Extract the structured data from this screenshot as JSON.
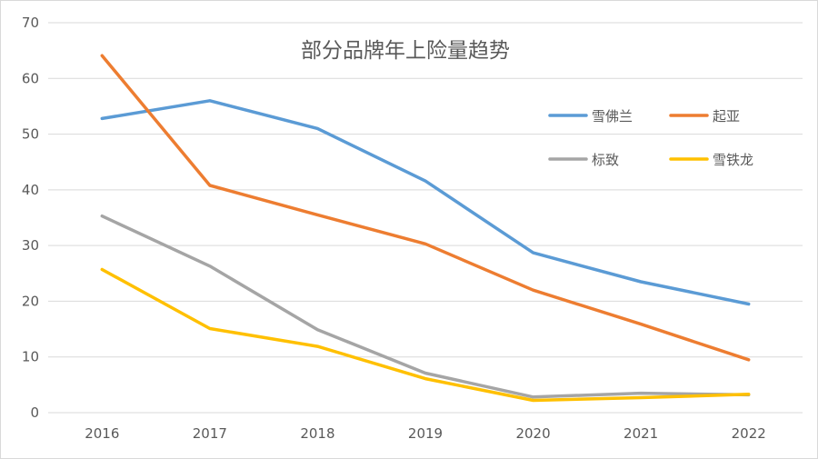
{
  "chart_data": {
    "type": "line",
    "title": "部分品牌年上险量趋势",
    "xlabel": "",
    "ylabel": "",
    "categories": [
      "2016",
      "2017",
      "2018",
      "2019",
      "2020",
      "2021",
      "2022"
    ],
    "ylim": [
      0,
      70
    ],
    "yticks": [
      "0",
      "10",
      "20",
      "30",
      "40",
      "50",
      "60",
      "70"
    ],
    "grid": true,
    "legend_position": "top-right",
    "series": [
      {
        "name": "雪佛兰",
        "color": "#5B9BD5",
        "values": [
          52.8,
          56.0,
          51.0,
          41.6,
          28.7,
          23.5,
          19.5
        ]
      },
      {
        "name": "起亚",
        "color": "#ED7D31",
        "values": [
          64.1,
          40.8,
          35.5,
          30.3,
          22.0,
          15.9,
          9.5
        ]
      },
      {
        "name": "标致",
        "color": "#A5A5A5",
        "values": [
          35.3,
          26.3,
          14.9,
          7.1,
          2.8,
          3.5,
          3.2
        ]
      },
      {
        "name": "雪铁龙",
        "color": "#FFC000",
        "values": [
          25.7,
          15.1,
          11.9,
          6.1,
          2.2,
          2.7,
          3.3
        ]
      }
    ]
  }
}
